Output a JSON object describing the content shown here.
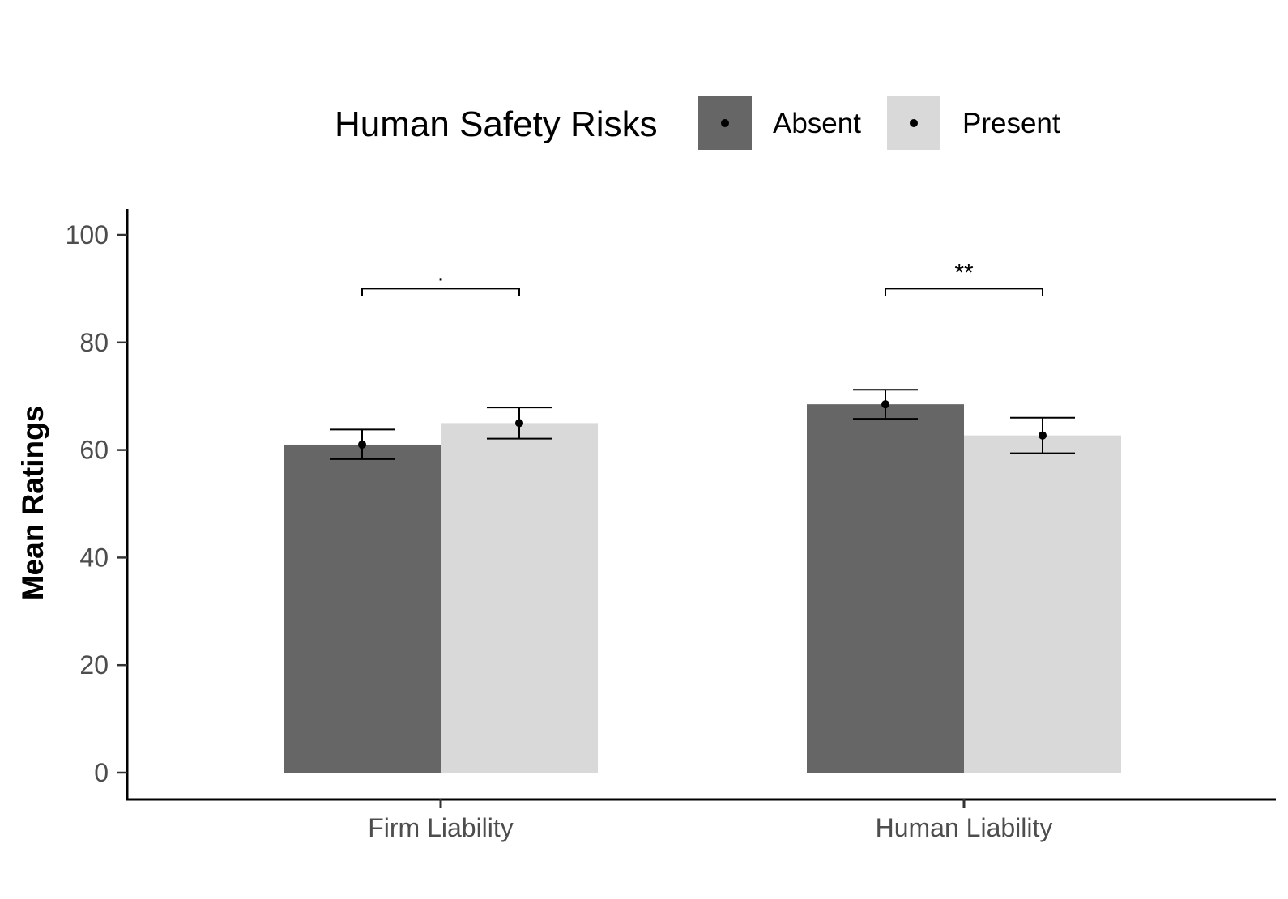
{
  "chart_data": {
    "type": "bar",
    "categories": [
      "Firm Liability",
      "Human Liability"
    ],
    "legend": {
      "title": "Human Safety Risks",
      "position": "top",
      "items": [
        {
          "label": "Absent",
          "color": "#666666"
        },
        {
          "label": "Present",
          "color": "#d9d9d9"
        }
      ]
    },
    "series": [
      {
        "name": "Absent",
        "color": "#666666",
        "values": [
          61.0,
          68.5
        ],
        "error_low": [
          58.3,
          65.8
        ],
        "error_high": [
          63.8,
          71.2
        ]
      },
      {
        "name": "Present",
        "color": "#d9d9d9",
        "values": [
          65.0,
          62.7
        ],
        "error_low": [
          62.1,
          59.4
        ],
        "error_high": [
          67.9,
          66.0
        ]
      }
    ],
    "significance": [
      {
        "category": "Firm Liability",
        "label": ".",
        "y": 90
      },
      {
        "category": "Human Liability",
        "label": "**",
        "y": 90
      }
    ],
    "ylabel": "Mean Ratings",
    "xlabel": "",
    "ylim": [
      0,
      100
    ],
    "yticks": [
      0,
      20,
      40,
      60,
      80,
      100
    ],
    "grid": false
  }
}
